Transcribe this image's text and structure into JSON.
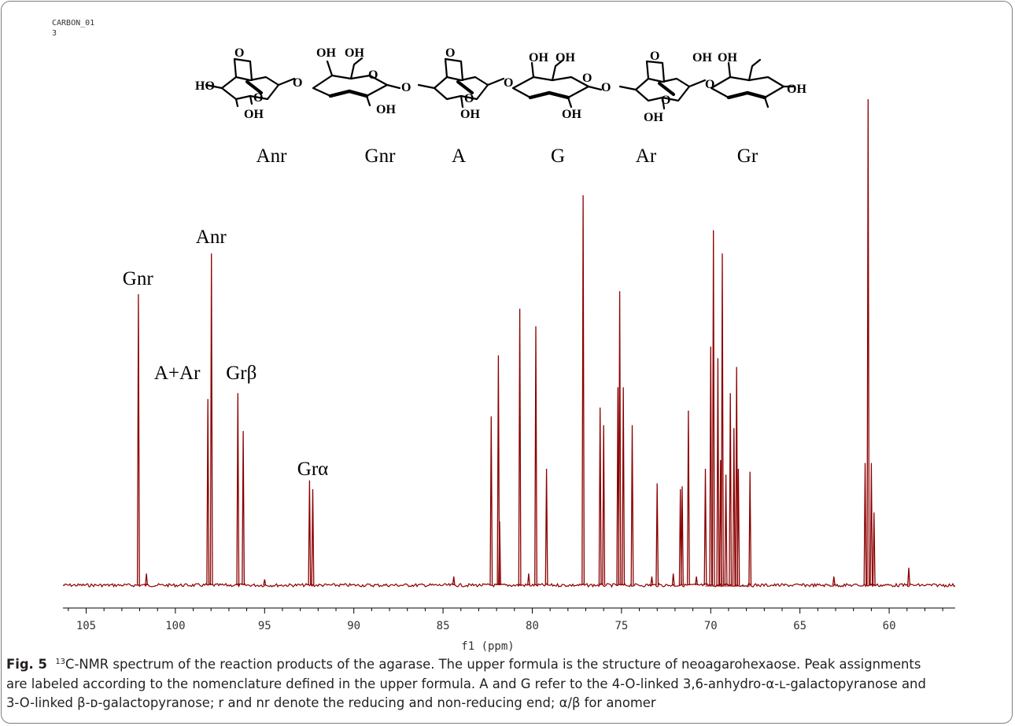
{
  "chart_data": {
    "type": "line",
    "corner_label": [
      "CARBON_01",
      "3"
    ],
    "xlabel": "f1 (ppm)",
    "xlim": [
      106.3,
      56.3
    ],
    "x_reversed": true,
    "x_ticks": [
      105,
      100,
      95,
      90,
      85,
      80,
      75,
      70,
      65,
      60
    ],
    "line_color": "#8b0000",
    "structure": {
      "description_visible_only_as_drawing": true,
      "residue_labels": [
        "Anr",
        "Gnr",
        "A",
        "G",
        "Ar",
        "Gr"
      ],
      "atom_labels": [
        "HO",
        "O",
        "O",
        "OH",
        "O",
        "OH",
        "OH",
        "O",
        "OH",
        "O",
        "O",
        "OH",
        "O",
        "OH",
        "OH",
        "O",
        "OH",
        "O",
        "O",
        "OH",
        "O",
        "OH",
        "OH",
        "O",
        "OH",
        "OH"
      ]
    },
    "peaks": [
      {
        "x": 102.07,
        "h": 100
      },
      {
        "x": 101.62,
        "h": 4
      },
      {
        "x": 98.18,
        "h": 64
      },
      {
        "x": 97.98,
        "h": 114
      },
      {
        "x": 96.5,
        "h": 66
      },
      {
        "x": 96.2,
        "h": 53
      },
      {
        "x": 95.0,
        "h": 2
      },
      {
        "x": 92.48,
        "h": 36
      },
      {
        "x": 92.3,
        "h": 33
      },
      {
        "x": 84.4,
        "h": 3
      },
      {
        "x": 82.3,
        "h": 58
      },
      {
        "x": 81.9,
        "h": 79
      },
      {
        "x": 81.83,
        "h": 22
      },
      {
        "x": 80.7,
        "h": 95
      },
      {
        "x": 80.2,
        "h": 4
      },
      {
        "x": 79.8,
        "h": 89
      },
      {
        "x": 79.2,
        "h": 40
      },
      {
        "x": 77.15,
        "h": 134
      },
      {
        "x": 76.2,
        "h": 61
      },
      {
        "x": 76.0,
        "h": 55
      },
      {
        "x": 75.2,
        "h": 68
      },
      {
        "x": 75.1,
        "h": 101
      },
      {
        "x": 74.9,
        "h": 68
      },
      {
        "x": 74.4,
        "h": 55
      },
      {
        "x": 73.3,
        "h": 3
      },
      {
        "x": 73.0,
        "h": 35
      },
      {
        "x": 72.1,
        "h": 4
      },
      {
        "x": 71.7,
        "h": 33
      },
      {
        "x": 71.6,
        "h": 34
      },
      {
        "x": 71.25,
        "h": 60
      },
      {
        "x": 70.8,
        "h": 3
      },
      {
        "x": 70.3,
        "h": 40
      },
      {
        "x": 70.0,
        "h": 82
      },
      {
        "x": 69.85,
        "h": 122
      },
      {
        "x": 69.6,
        "h": 78
      },
      {
        "x": 69.45,
        "h": 43
      },
      {
        "x": 69.35,
        "h": 114
      },
      {
        "x": 69.15,
        "h": 38
      },
      {
        "x": 68.9,
        "h": 66
      },
      {
        "x": 68.7,
        "h": 54
      },
      {
        "x": 68.55,
        "h": 75
      },
      {
        "x": 68.45,
        "h": 40
      },
      {
        "x": 67.8,
        "h": 39
      },
      {
        "x": 63.1,
        "h": 3
      },
      {
        "x": 61.35,
        "h": 42
      },
      {
        "x": 61.18,
        "h": 167
      },
      {
        "x": 61.0,
        "h": 42
      },
      {
        "x": 60.85,
        "h": 25
      },
      {
        "x": 58.9,
        "h": 6
      }
    ],
    "annotations": [
      {
        "text": "Gnr",
        "x": 102.1
      },
      {
        "text": "Anr",
        "x": 98.0
      },
      {
        "text": "A+Ar",
        "x": 99.9
      },
      {
        "text": "Grβ",
        "x": 96.3
      },
      {
        "text": "Grα",
        "x": 92.3
      }
    ]
  },
  "caption": {
    "fig_label": "Fig. 5",
    "sup": "13",
    "line1": "C-NMR spectrum of the reaction products of the agarase. The upper formula is the structure of neoagarohexaose. Peak assignments",
    "line2": "are labeled according to the nomenclature defined in the upper formula. A and G refer to the 4-O-linked 3,6-anhydro-α-ʟ-galactopyranose and",
    "line3": "3-O-linked β-ᴅ-galactopyranose; r and nr denote the reducing and non-reducing end; α/β for anomer"
  }
}
